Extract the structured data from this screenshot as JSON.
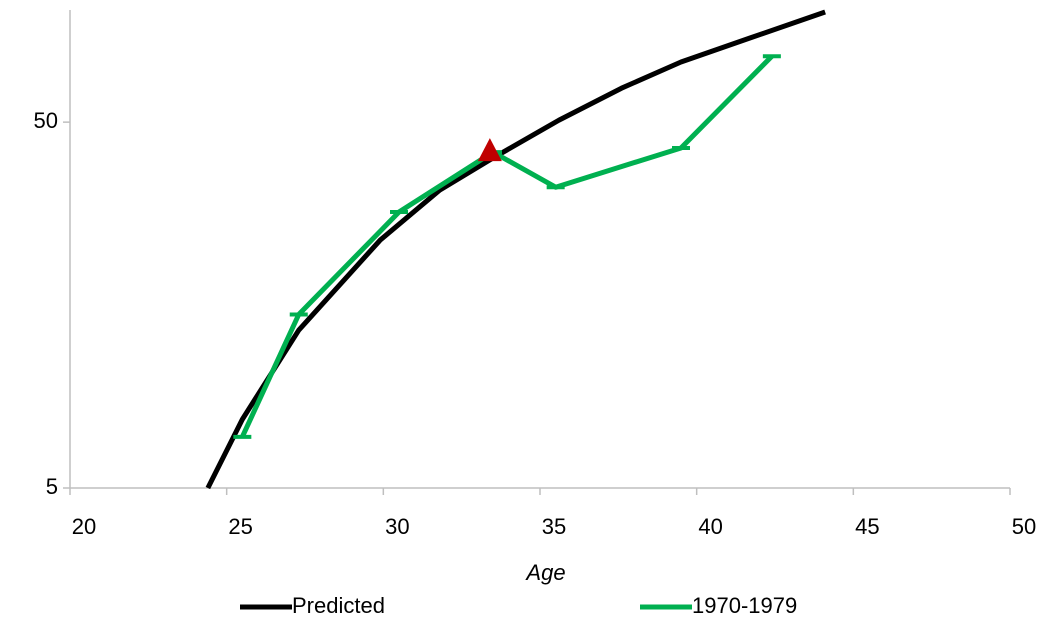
{
  "chart_data": {
    "type": "line",
    "xlabel": "Age",
    "ylog": true,
    "xlim": [
      20,
      50
    ],
    "xticks": [
      20,
      25,
      30,
      35,
      40,
      45,
      50
    ],
    "ylim": [
      5,
      100
    ],
    "yticks": [
      5,
      50
    ],
    "series": [
      {
        "name": "Predicted",
        "color": "#000000",
        "marker": "none",
        "x": [
          24.4,
          25.5,
          27.3,
          29.9,
          31.8,
          33.5,
          35.6,
          37.6,
          39.5,
          41.7,
          44.1
        ],
        "values": [
          5,
          7.7,
          13.5,
          23.8,
          32.6,
          39.9,
          50.6,
          61.9,
          73,
          84.9,
          100
        ]
      },
      {
        "name": "1970-1979",
        "color": "#00b050",
        "marker": "dash",
        "x": [
          25.5,
          27.3,
          30.5,
          33.5,
          35.5,
          39.5,
          42.4
        ],
        "values": [
          6.9,
          14.9,
          28.4,
          41.4,
          33.2,
          42.5,
          75.7
        ]
      }
    ],
    "highlight": {
      "x": 33.4,
      "y": 41.4,
      "color": "#c00000"
    },
    "legend": "bottom"
  }
}
